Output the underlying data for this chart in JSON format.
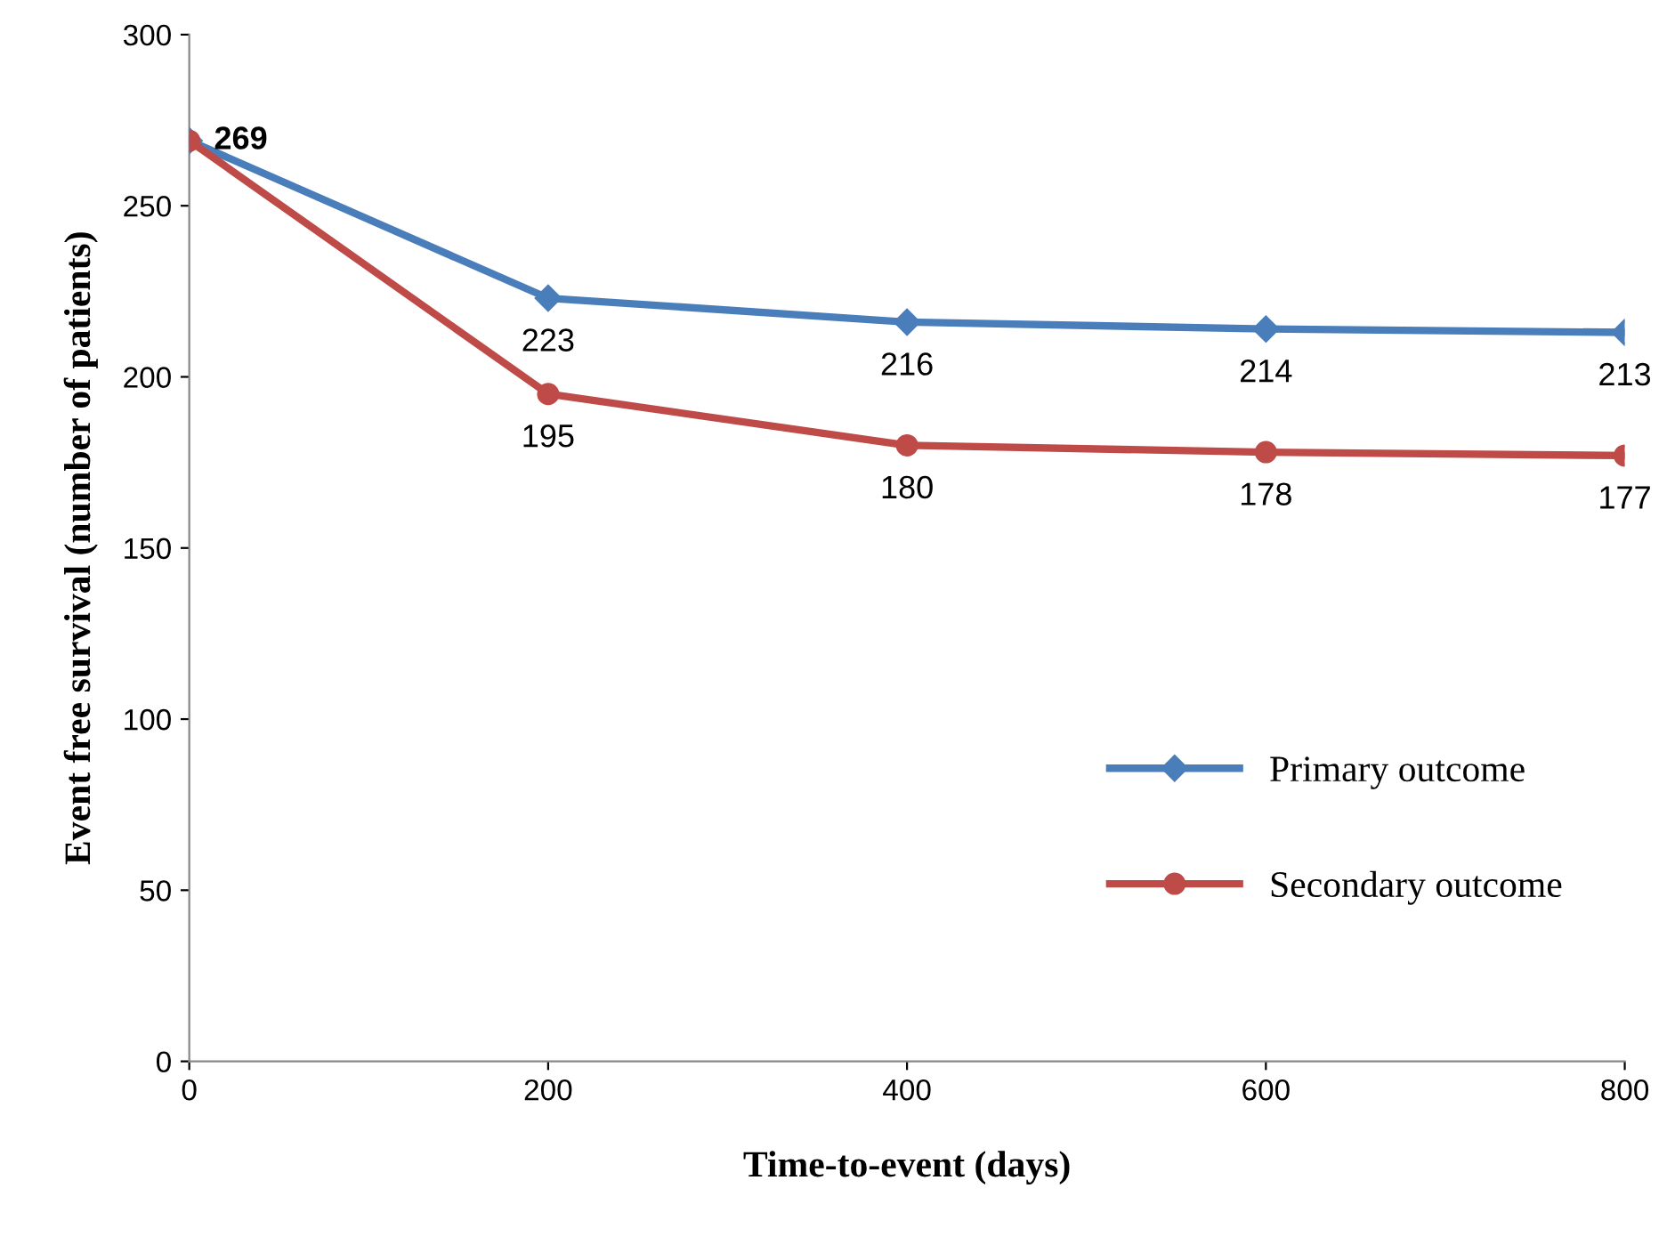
{
  "chart_data": {
    "type": "line",
    "xlabel": "Time-to-event (days)",
    "ylabel": "Event free survival (number of patients)",
    "x": [
      0,
      200,
      400,
      600,
      800
    ],
    "series": [
      {
        "name": "Primary outcome",
        "color": "#4a7ebb",
        "marker": "diamond",
        "values": [
          269,
          223,
          216,
          214,
          213
        ],
        "value_labels": [
          "269",
          "223",
          "216",
          "214",
          "213"
        ]
      },
      {
        "name": "Secondary outcome",
        "color": "#be4b48",
        "marker": "circle",
        "values": [
          269,
          195,
          180,
          178,
          177
        ],
        "value_labels": [
          null,
          "195",
          "180",
          "178",
          "177"
        ]
      }
    ],
    "xlim": [
      0,
      800
    ],
    "xticks": [
      0,
      200,
      400,
      600,
      800
    ],
    "ylim": [
      0,
      300
    ],
    "yticks": [
      0,
      50,
      100,
      150,
      200,
      250,
      300
    ],
    "grid": false,
    "legend": "bottom right",
    "line_style": "solid"
  }
}
